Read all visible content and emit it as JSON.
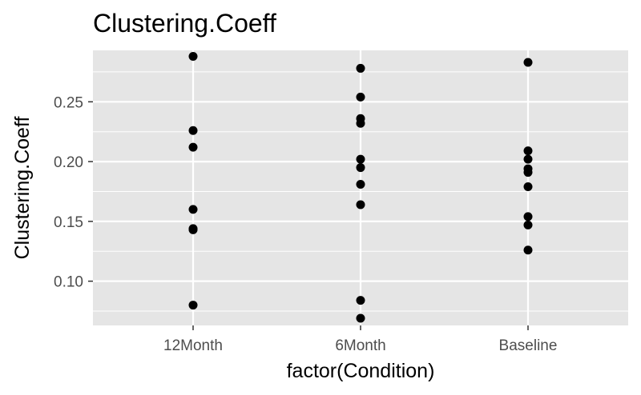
{
  "chart_data": {
    "type": "scatter",
    "title": "Clustering.Coeff",
    "xlabel": "factor(Condition)",
    "ylabel": "Clustering.Coeff",
    "categories": [
      "12Month",
      "6Month",
      "Baseline"
    ],
    "ylim": [
      0.063,
      0.293
    ],
    "yticks": [
      0.1,
      0.15,
      0.2,
      0.25
    ],
    "ytick_labels": [
      "0.10",
      "0.15",
      "0.20",
      "0.25"
    ],
    "grid": true,
    "legend": "none",
    "points": [
      {
        "x": "12Month",
        "y": 0.288
      },
      {
        "x": "12Month",
        "y": 0.226
      },
      {
        "x": "12Month",
        "y": 0.212
      },
      {
        "x": "12Month",
        "y": 0.16
      },
      {
        "x": "12Month",
        "y": 0.144
      },
      {
        "x": "12Month",
        "y": 0.143
      },
      {
        "x": "12Month",
        "y": 0.08
      },
      {
        "x": "6Month",
        "y": 0.278
      },
      {
        "x": "6Month",
        "y": 0.254
      },
      {
        "x": "6Month",
        "y": 0.236
      },
      {
        "x": "6Month",
        "y": 0.232
      },
      {
        "x": "6Month",
        "y": 0.202
      },
      {
        "x": "6Month",
        "y": 0.195
      },
      {
        "x": "6Month",
        "y": 0.181
      },
      {
        "x": "6Month",
        "y": 0.164
      },
      {
        "x": "6Month",
        "y": 0.084
      },
      {
        "x": "6Month",
        "y": 0.069
      },
      {
        "x": "Baseline",
        "y": 0.283
      },
      {
        "x": "Baseline",
        "y": 0.209
      },
      {
        "x": "Baseline",
        "y": 0.202
      },
      {
        "x": "Baseline",
        "y": 0.194
      },
      {
        "x": "Baseline",
        "y": 0.191
      },
      {
        "x": "Baseline",
        "y": 0.179
      },
      {
        "x": "Baseline",
        "y": 0.154
      },
      {
        "x": "Baseline",
        "y": 0.147
      },
      {
        "x": "Baseline",
        "y": 0.126
      }
    ]
  },
  "colors": {
    "panel_background": "#e5e5e5",
    "grid": "#ffffff",
    "point": "#000000",
    "tick_label": "#4d4d4d"
  }
}
